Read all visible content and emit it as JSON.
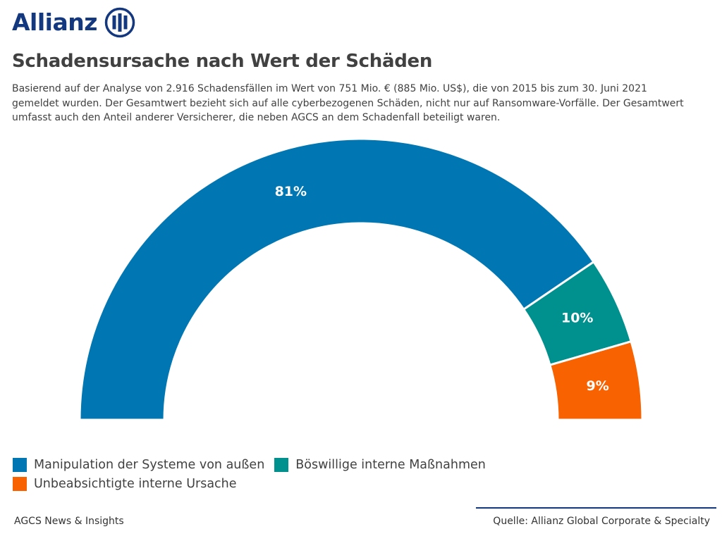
{
  "brand": {
    "name": "Allianz"
  },
  "header": {
    "title": "Schadensursache nach Wert der Schäden",
    "subtitle": "Basierend auf der Analyse von 2.916 Schadensfällen im Wert von 751 Mio. € (885 Mio. US$), die von 2015 bis zum 30. Juni 2021 gemeldet wurden. Der Gesamtwert bezieht sich auf alle cyberbezogenen Schäden, nicht nur auf Ransomware-Vorfälle. Der Gesamtwert umfasst auch den Anteil anderer Versicherer, die neben AGCS an dem Schadenfall beteiligt waren."
  },
  "colors": {
    "brand": "#14387F",
    "blue": "#0077B3",
    "teal": "#00908D",
    "orange": "#F86200"
  },
  "chart_data": {
    "type": "pie",
    "variant": "half-donut",
    "title": "Schadensursache nach Wert der Schäden",
    "unit": "%",
    "categories": [
      "Manipulation der Systeme von außen",
      "Böswillige interne Maßnahmen",
      "Unbeabsichtigte interne Ursache"
    ],
    "values": [
      81,
      10,
      9
    ],
    "labels": [
      "81%",
      "10%",
      "9%"
    ],
    "colors": [
      "#0077B3",
      "#00908D",
      "#F86200"
    ],
    "legend_position": "bottom-left"
  },
  "footer": {
    "left": "AGCS News & Insights",
    "right": "Quelle: Allianz Global Corporate & Specialty"
  }
}
